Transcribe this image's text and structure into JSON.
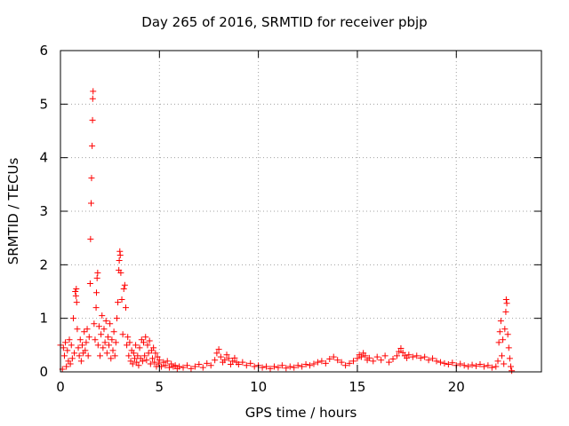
{
  "chart_data": {
    "type": "scatter",
    "title": "Day 265 of 2016, SRMTID for receiver pbjp",
    "xlabel": "GPS time / hours",
    "ylabel": "SRMTID / TECUs",
    "xlim": [
      0,
      24.3
    ],
    "ylim": [
      0,
      6
    ],
    "xticks": [
      0,
      5,
      10,
      15,
      20
    ],
    "yticks": [
      0,
      1,
      2,
      3,
      4,
      5,
      6
    ],
    "grid": true,
    "marker": "+",
    "color": "#ff0000",
    "series": [
      {
        "name": "SRMTID",
        "points": [
          [
            0.0,
            0.5
          ],
          [
            0.1,
            0.05
          ],
          [
            0.15,
            0.45
          ],
          [
            0.2,
            0.3
          ],
          [
            0.25,
            0.55
          ],
          [
            0.3,
            0.1
          ],
          [
            0.35,
            0.4
          ],
          [
            0.4,
            0.2
          ],
          [
            0.45,
            0.6
          ],
          [
            0.5,
            0.15
          ],
          [
            0.55,
            0.5
          ],
          [
            0.6,
            0.25
          ],
          [
            0.65,
            1.0
          ],
          [
            0.7,
            0.35
          ],
          [
            0.75,
            1.5
          ],
          [
            0.78,
            1.42
          ],
          [
            0.8,
            1.55
          ],
          [
            0.82,
            1.3
          ],
          [
            0.85,
            0.8
          ],
          [
            0.9,
            0.45
          ],
          [
            0.95,
            0.3
          ],
          [
            1.0,
            0.6
          ],
          [
            1.05,
            0.2
          ],
          [
            1.1,
            0.5
          ],
          [
            1.15,
            0.35
          ],
          [
            1.2,
            0.75
          ],
          [
            1.25,
            0.4
          ],
          [
            1.3,
            0.55
          ],
          [
            1.35,
            0.8
          ],
          [
            1.4,
            0.3
          ],
          [
            1.45,
            0.65
          ],
          [
            1.5,
            1.65
          ],
          [
            1.52,
            2.48
          ],
          [
            1.55,
            3.15
          ],
          [
            1.57,
            3.62
          ],
          [
            1.6,
            4.22
          ],
          [
            1.62,
            4.7
          ],
          [
            1.63,
            5.1
          ],
          [
            1.65,
            5.24
          ],
          [
            1.7,
            0.9
          ],
          [
            1.75,
            0.6
          ],
          [
            1.8,
            1.2
          ],
          [
            1.82,
            1.48
          ],
          [
            1.85,
            1.75
          ],
          [
            1.88,
            1.85
          ],
          [
            1.9,
            0.5
          ],
          [
            1.95,
            0.85
          ],
          [
            2.0,
            0.3
          ],
          [
            2.05,
            0.7
          ],
          [
            2.1,
            1.05
          ],
          [
            2.15,
            0.45
          ],
          [
            2.2,
            0.8
          ],
          [
            2.25,
            0.55
          ],
          [
            2.3,
            0.95
          ],
          [
            2.35,
            0.35
          ],
          [
            2.4,
            0.65
          ],
          [
            2.45,
            0.5
          ],
          [
            2.5,
            0.9
          ],
          [
            2.55,
            0.25
          ],
          [
            2.6,
            0.6
          ],
          [
            2.65,
            0.4
          ],
          [
            2.7,
            0.75
          ],
          [
            2.75,
            0.3
          ],
          [
            2.8,
            0.55
          ],
          [
            2.85,
            1.0
          ],
          [
            2.9,
            1.3
          ],
          [
            2.95,
            1.9
          ],
          [
            2.97,
            2.08
          ],
          [
            3.0,
            2.25
          ],
          [
            3.02,
            2.18
          ],
          [
            3.05,
            1.85
          ],
          [
            3.1,
            1.35
          ],
          [
            3.15,
            0.7
          ],
          [
            3.2,
            1.55
          ],
          [
            3.25,
            1.62
          ],
          [
            3.3,
            1.2
          ],
          [
            3.35,
            0.5
          ],
          [
            3.4,
            0.65
          ],
          [
            3.45,
            0.3
          ],
          [
            3.5,
            0.55
          ],
          [
            3.55,
            0.2
          ],
          [
            3.6,
            0.4
          ],
          [
            3.65,
            0.15
          ],
          [
            3.7,
            0.35
          ],
          [
            3.75,
            0.25
          ],
          [
            3.8,
            0.5
          ],
          [
            3.85,
            0.18
          ],
          [
            3.9,
            0.3
          ],
          [
            3.95,
            0.12
          ],
          [
            4.0,
            0.45
          ],
          [
            4.05,
            0.25
          ],
          [
            4.1,
            0.6
          ],
          [
            4.15,
            0.2
          ],
          [
            4.2,
            0.55
          ],
          [
            4.25,
            0.3
          ],
          [
            4.3,
            0.65
          ],
          [
            4.35,
            0.22
          ],
          [
            4.4,
            0.5
          ],
          [
            4.45,
            0.35
          ],
          [
            4.5,
            0.58
          ],
          [
            4.55,
            0.15
          ],
          [
            4.6,
            0.4
          ],
          [
            4.65,
            0.25
          ],
          [
            4.7,
            0.45
          ],
          [
            4.75,
            0.18
          ],
          [
            4.8,
            0.35
          ],
          [
            4.85,
            0.1
          ],
          [
            4.9,
            0.28
          ],
          [
            4.95,
            0.15
          ],
          [
            5.0,
            0.22
          ],
          [
            5.1,
            0.1
          ],
          [
            5.2,
            0.18
          ],
          [
            5.3,
            0.12
          ],
          [
            5.4,
            0.2
          ],
          [
            5.5,
            0.08
          ],
          [
            5.6,
            0.15
          ],
          [
            5.7,
            0.1
          ],
          [
            5.8,
            0.12
          ],
          [
            5.9,
            0.06
          ],
          [
            6.0,
            0.1
          ],
          [
            6.2,
            0.08
          ],
          [
            6.4,
            0.12
          ],
          [
            6.6,
            0.06
          ],
          [
            6.8,
            0.1
          ],
          [
            7.0,
            0.14
          ],
          [
            7.2,
            0.08
          ],
          [
            7.4,
            0.16
          ],
          [
            7.6,
            0.12
          ],
          [
            7.8,
            0.22
          ],
          [
            7.9,
            0.35
          ],
          [
            8.0,
            0.42
          ],
          [
            8.1,
            0.28
          ],
          [
            8.2,
            0.18
          ],
          [
            8.3,
            0.22
          ],
          [
            8.4,
            0.32
          ],
          [
            8.5,
            0.25
          ],
          [
            8.6,
            0.14
          ],
          [
            8.7,
            0.2
          ],
          [
            8.8,
            0.26
          ],
          [
            8.9,
            0.18
          ],
          [
            9.0,
            0.14
          ],
          [
            9.2,
            0.18
          ],
          [
            9.4,
            0.12
          ],
          [
            9.6,
            0.16
          ],
          [
            9.8,
            0.1
          ],
          [
            10.0,
            0.12
          ],
          [
            10.2,
            0.08
          ],
          [
            10.4,
            0.1
          ],
          [
            10.6,
            0.06
          ],
          [
            10.8,
            0.1
          ],
          [
            11.0,
            0.08
          ],
          [
            11.2,
            0.12
          ],
          [
            11.4,
            0.07
          ],
          [
            11.6,
            0.1
          ],
          [
            11.8,
            0.08
          ],
          [
            12.0,
            0.12
          ],
          [
            12.2,
            0.1
          ],
          [
            12.4,
            0.14
          ],
          [
            12.6,
            0.12
          ],
          [
            12.8,
            0.15
          ],
          [
            13.0,
            0.18
          ],
          [
            13.2,
            0.2
          ],
          [
            13.4,
            0.16
          ],
          [
            13.6,
            0.24
          ],
          [
            13.8,
            0.28
          ],
          [
            14.0,
            0.22
          ],
          [
            14.2,
            0.18
          ],
          [
            14.4,
            0.12
          ],
          [
            14.6,
            0.16
          ],
          [
            14.8,
            0.2
          ],
          [
            15.0,
            0.25
          ],
          [
            15.1,
            0.32
          ],
          [
            15.2,
            0.28
          ],
          [
            15.3,
            0.35
          ],
          [
            15.4,
            0.3
          ],
          [
            15.5,
            0.22
          ],
          [
            15.6,
            0.26
          ],
          [
            15.8,
            0.2
          ],
          [
            16.0,
            0.28
          ],
          [
            16.2,
            0.22
          ],
          [
            16.4,
            0.3
          ],
          [
            16.6,
            0.18
          ],
          [
            16.8,
            0.24
          ],
          [
            17.0,
            0.3
          ],
          [
            17.1,
            0.38
          ],
          [
            17.2,
            0.44
          ],
          [
            17.3,
            0.36
          ],
          [
            17.4,
            0.3
          ],
          [
            17.5,
            0.26
          ],
          [
            17.6,
            0.32
          ],
          [
            17.8,
            0.28
          ],
          [
            18.0,
            0.3
          ],
          [
            18.2,
            0.26
          ],
          [
            18.4,
            0.28
          ],
          [
            18.6,
            0.22
          ],
          [
            18.8,
            0.25
          ],
          [
            19.0,
            0.2
          ],
          [
            19.2,
            0.18
          ],
          [
            19.4,
            0.16
          ],
          [
            19.6,
            0.14
          ],
          [
            19.8,
            0.17
          ],
          [
            20.0,
            0.12
          ],
          [
            20.2,
            0.15
          ],
          [
            20.4,
            0.12
          ],
          [
            20.6,
            0.1
          ],
          [
            20.8,
            0.13
          ],
          [
            21.0,
            0.11
          ],
          [
            21.2,
            0.14
          ],
          [
            21.4,
            0.1
          ],
          [
            21.6,
            0.12
          ],
          [
            21.8,
            0.08
          ],
          [
            22.0,
            0.1
          ],
          [
            22.1,
            0.2
          ],
          [
            22.15,
            0.55
          ],
          [
            22.2,
            0.75
          ],
          [
            22.25,
            0.95
          ],
          [
            22.3,
            0.3
          ],
          [
            22.35,
            0.6
          ],
          [
            22.4,
            0.15
          ],
          [
            22.45,
            0.8
          ],
          [
            22.5,
            1.12
          ],
          [
            22.52,
            1.35
          ],
          [
            22.55,
            1.28
          ],
          [
            22.6,
            0.7
          ],
          [
            22.65,
            0.45
          ],
          [
            22.7,
            0.25
          ],
          [
            22.75,
            0.1
          ],
          [
            22.8,
            0.02
          ]
        ]
      }
    ]
  }
}
